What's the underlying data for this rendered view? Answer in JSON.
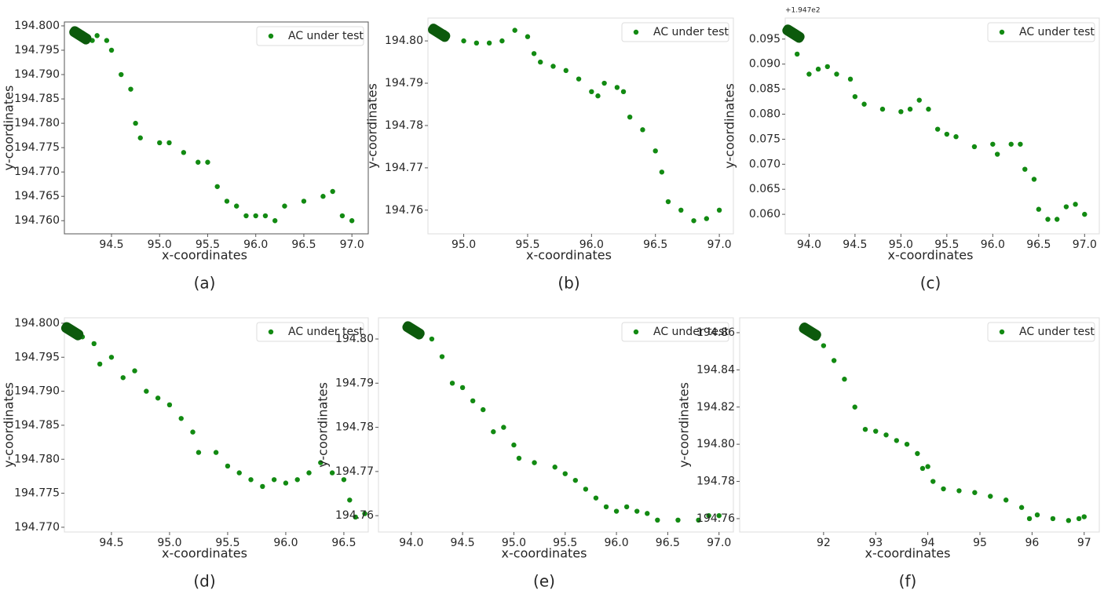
{
  "chart_data": [
    {
      "type": "scatter",
      "caption": "(a)",
      "x_label": "x-coordinates",
      "y_label": "y-coordinates",
      "legend": "upper right",
      "xlim": [
        94.01,
        97.17
      ],
      "ylim": [
        194.7573,
        194.8008
      ],
      "xticks": [
        94.5,
        {
          "value": 95,
          "label": "95.0"
        },
        95.5,
        {
          "value": 96,
          "label": "96.0"
        },
        96.5,
        {
          "value": 97,
          "label": "97.0"
        }
      ],
      "yticks": [
        {
          "value": 194.76,
          "label": "194.760"
        },
        194.765,
        {
          "value": 194.77,
          "label": "194.770"
        },
        194.775,
        {
          "value": 194.78,
          "label": "194.780"
        },
        194.785,
        {
          "value": 194.79,
          "label": "194.790"
        },
        194.795,
        {
          "value": 194.8,
          "label": "194.800"
        }
      ],
      "series": [
        {
          "name": "AC under test",
          "color": "#128a12",
          "x": [
            94.1,
            94.2,
            94.3,
            94.35,
            94.45,
            94.5,
            94.6,
            94.7,
            94.75,
            94.8,
            95.0,
            95.1,
            95.25,
            95.4,
            95.5,
            95.6,
            95.7,
            95.8,
            95.9,
            96.0,
            96.1,
            96.2,
            96.3,
            96.5,
            96.7,
            96.8,
            96.9,
            97.0
          ],
          "values": [
            194.799,
            194.7985,
            194.797,
            194.798,
            194.797,
            194.795,
            194.79,
            194.787,
            194.78,
            194.777,
            194.776,
            194.776,
            194.774,
            194.772,
            194.772,
            194.767,
            194.764,
            194.763,
            194.761,
            194.761,
            194.761,
            194.76,
            194.763,
            194.764,
            194.765,
            194.766,
            194.761,
            194.76
          ]
        }
      ]
    },
    {
      "type": "scatter",
      "caption": "(b)",
      "x_label": "x-coordinates",
      "y_label": "y-coordinates",
      "legend": "upper right",
      "xlim": [
        94.72,
        97.11
      ],
      "ylim": [
        194.7544,
        194.8054
      ],
      "xticks": [
        {
          "value": 95,
          "label": "95.0"
        },
        95.5,
        {
          "value": 96,
          "label": "96.0"
        },
        96.5,
        {
          "value": 97,
          "label": "97.0"
        }
      ],
      "yticks": [
        194.76,
        194.77,
        194.78,
        194.79,
        {
          "value": 194.8,
          "label": "194.80"
        }
      ],
      "series": [
        {
          "name": "AC under test",
          "color": "#128a12",
          "x": [
            94.75,
            94.85,
            95.0,
            95.1,
            95.2,
            95.3,
            95.4,
            95.5,
            95.55,
            95.6,
            95.7,
            95.8,
            95.9,
            96.0,
            96.05,
            96.1,
            96.2,
            96.25,
            96.3,
            96.4,
            96.5,
            96.55,
            96.6,
            96.7,
            96.8,
            96.9,
            97.0
          ],
          "values": [
            194.803,
            194.802,
            194.8,
            194.7995,
            194.7995,
            194.8,
            194.8025,
            194.801,
            194.797,
            194.795,
            194.794,
            194.793,
            194.791,
            194.788,
            194.787,
            194.79,
            194.789,
            194.788,
            194.782,
            194.779,
            194.774,
            194.769,
            194.762,
            194.76,
            194.7575,
            194.758,
            194.76
          ]
        }
      ]
    },
    {
      "type": "scatter",
      "caption": "(c)",
      "x_label": "x-coordinates",
      "y_label": "y-coordinates",
      "legend": "upper right",
      "y_offset": "+1.947e2",
      "xlim": [
        93.74,
        97.16
      ],
      "ylim": [
        0.0561,
        0.0992
      ],
      "xticks": [
        {
          "value": 94,
          "label": "94.0"
        },
        94.5,
        {
          "value": 95,
          "label": "95.0"
        },
        95.5,
        {
          "value": 96,
          "label": "96.0"
        },
        96.5,
        {
          "value": 97,
          "label": "97.0"
        }
      ],
      "yticks": [
        {
          "value": 0.06,
          "label": "0.060"
        },
        0.065,
        {
          "value": 0.07,
          "label": "0.070"
        },
        0.075,
        {
          "value": 0.08,
          "label": "0.080"
        },
        0.085,
        {
          "value": 0.09,
          "label": "0.090"
        },
        0.095
      ],
      "series": [
        {
          "name": "AC under test",
          "color": "#128a12",
          "x": [
            93.75,
            93.85,
            93.87,
            94.0,
            94.1,
            94.2,
            94.3,
            94.45,
            94.5,
            94.6,
            94.8,
            95.0,
            95.1,
            95.2,
            95.3,
            95.4,
            95.5,
            95.6,
            95.8,
            96.0,
            96.05,
            96.2,
            96.3,
            96.35,
            96.45,
            96.5,
            96.6,
            96.7,
            96.8,
            96.9,
            97.0
          ],
          "values": [
            0.097,
            0.096,
            0.092,
            0.088,
            0.089,
            0.0895,
            0.088,
            0.087,
            0.0835,
            0.082,
            0.081,
            0.0805,
            0.081,
            0.0828,
            0.081,
            0.077,
            0.076,
            0.0755,
            0.0735,
            0.074,
            0.072,
            0.074,
            0.074,
            0.069,
            0.067,
            0.061,
            0.059,
            0.059,
            0.0615,
            0.062,
            0.06
          ]
        }
      ]
    },
    {
      "type": "scatter",
      "caption": "(d)",
      "x_label": "x-coordinates",
      "y_label": "y-coordinates",
      "legend": "upper right",
      "xlim": [
        94.095,
        96.71
      ],
      "ylim": [
        194.7693,
        194.8008
      ],
      "xticks": [
        94.5,
        {
          "value": 95,
          "label": "95.0"
        },
        95.5,
        {
          "value": 96,
          "label": "96.0"
        },
        96.5
      ],
      "yticks": [
        {
          "value": 194.77,
          "label": "194.770"
        },
        194.775,
        {
          "value": 194.78,
          "label": "194.780"
        },
        194.785,
        {
          "value": 194.79,
          "label": "194.790"
        },
        194.795,
        {
          "value": 194.8,
          "label": "194.800"
        }
      ],
      "series": [
        {
          "name": "AC under test",
          "color": "#128a12",
          "x": [
            94.1,
            94.25,
            94.35,
            94.4,
            94.5,
            94.6,
            94.7,
            94.8,
            94.9,
            95.0,
            95.1,
            95.2,
            95.25,
            95.4,
            95.5,
            95.6,
            95.7,
            95.8,
            95.9,
            96.0,
            96.1,
            96.2,
            96.3,
            96.4,
            96.5,
            96.55,
            96.6,
            96.68
          ],
          "values": [
            194.7995,
            194.798,
            194.797,
            194.794,
            194.795,
            194.792,
            194.793,
            194.79,
            194.789,
            194.788,
            194.786,
            194.784,
            194.781,
            194.781,
            194.779,
            194.778,
            194.777,
            194.776,
            194.777,
            194.7765,
            194.777,
            194.778,
            194.7795,
            194.778,
            194.777,
            194.774,
            194.7715,
            194.772
          ]
        }
      ]
    },
    {
      "type": "scatter",
      "caption": "(e)",
      "x_label": "x-coordinates",
      "y_label": "y-coordinates",
      "legend": "upper right",
      "xlim": [
        93.68,
        97.14
      ],
      "ylim": [
        194.7563,
        194.8048
      ],
      "xticks": [
        {
          "value": 94,
          "label": "94.0"
        },
        94.5,
        {
          "value": 95,
          "label": "95.0"
        },
        95.5,
        {
          "value": 96,
          "label": "96.0"
        },
        96.5,
        {
          "value": 97,
          "label": "97.0"
        }
      ],
      "yticks": [
        194.76,
        194.77,
        194.78,
        194.79,
        {
          "value": 194.8,
          "label": "194.80"
        }
      ],
      "series": [
        {
          "name": "AC under test",
          "color": "#128a12",
          "x": [
            93.95,
            94.05,
            94.2,
            94.3,
            94.4,
            94.5,
            94.6,
            94.7,
            94.8,
            94.9,
            95.0,
            95.05,
            95.2,
            95.4,
            95.5,
            95.6,
            95.7,
            95.8,
            95.9,
            96.0,
            96.1,
            96.2,
            96.3,
            96.4,
            96.6,
            96.8,
            96.9,
            97.0
          ],
          "values": [
            194.803,
            194.802,
            194.8,
            194.796,
            194.79,
            194.789,
            194.786,
            194.784,
            194.779,
            194.78,
            194.776,
            194.773,
            194.772,
            194.771,
            194.7695,
            194.768,
            194.766,
            194.764,
            194.762,
            194.761,
            194.762,
            194.761,
            194.7605,
            194.759,
            194.759,
            194.759,
            194.76,
            194.76
          ]
        }
      ]
    },
    {
      "type": "scatter",
      "caption": "(f)",
      "x_label": "x-coordinates",
      "y_label": "y-coordinates",
      "legend": "upper right",
      "xlim": [
        90.39,
        97.29
      ],
      "ylim": [
        194.7528,
        194.868
      ],
      "xticks": [
        92,
        93,
        94,
        95,
        96,
        97
      ],
      "yticks": [
        194.76,
        194.78,
        {
          "value": 194.8,
          "label": "194.80"
        },
        194.82,
        194.84,
        194.86
      ],
      "series": [
        {
          "name": "AC under test",
          "color": "#128a12",
          "x": [
            91.6,
            91.8,
            92.0,
            92.2,
            92.4,
            92.6,
            92.8,
            93.0,
            93.2,
            93.4,
            93.6,
            93.8,
            93.9,
            94.0,
            94.1,
            94.3,
            94.6,
            94.9,
            95.2,
            95.5,
            95.8,
            95.95,
            96.1,
            96.4,
            96.7,
            96.9,
            97.0
          ],
          "values": [
            194.863,
            194.861,
            194.853,
            194.845,
            194.835,
            194.82,
            194.808,
            194.807,
            194.805,
            194.802,
            194.8,
            194.795,
            194.787,
            194.788,
            194.78,
            194.776,
            194.775,
            194.774,
            194.772,
            194.77,
            194.766,
            194.76,
            194.762,
            194.76,
            194.759,
            194.76,
            194.761
          ]
        }
      ]
    }
  ]
}
